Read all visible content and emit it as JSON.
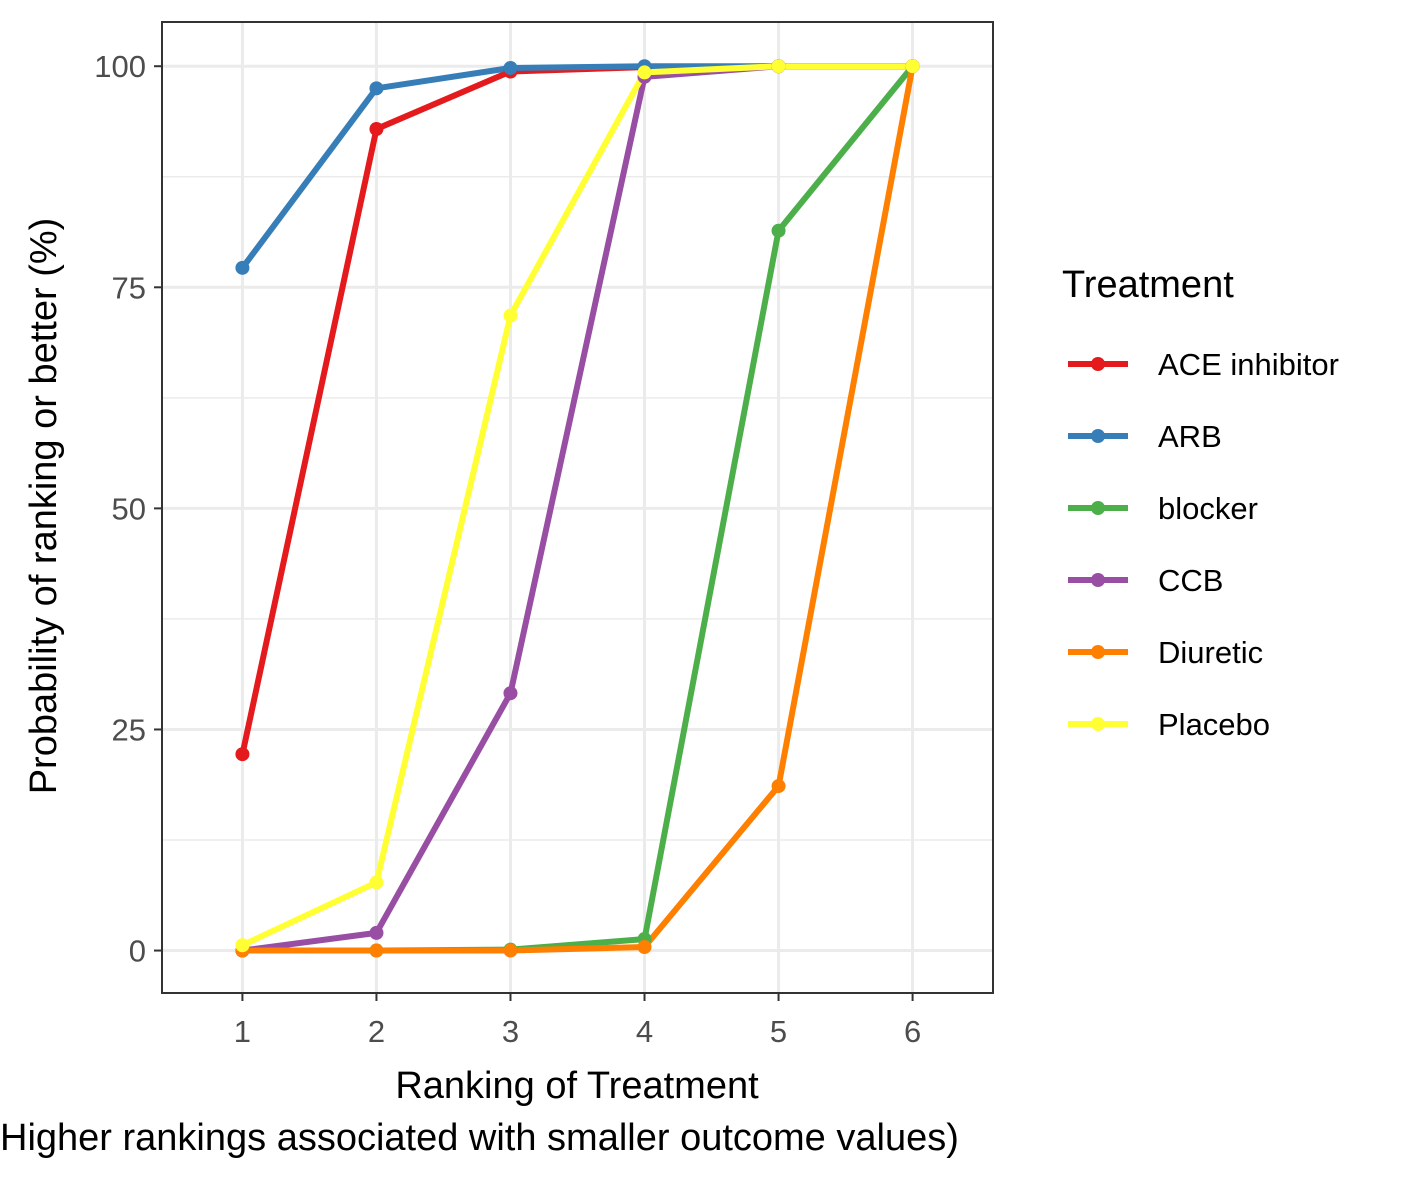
{
  "chart_data": {
    "type": "line",
    "title": "",
    "xlabel": "Ranking of Treatment",
    "xlabel_line2": "Higher rankings associated with smaller outcome values)",
    "ylabel": "Probability of ranking or better (%)",
    "x": [
      1,
      2,
      3,
      4,
      5,
      6
    ],
    "xlim": [
      0.4,
      6.6
    ],
    "ylim": [
      -4.8,
      105
    ],
    "yticks": [
      0,
      25,
      50,
      75,
      100
    ],
    "grid": true,
    "legend_title": "Treatment",
    "legend_position": "right",
    "series": [
      {
        "name": "ACE inhibitor",
        "color": "#e41a1c",
        "values": [
          22.2,
          92.9,
          99.4,
          99.9,
          100,
          100
        ]
      },
      {
        "name": "ARB",
        "color": "#377eb8",
        "values": [
          77.2,
          97.5,
          99.8,
          100,
          100,
          100
        ]
      },
      {
        "name": "blocker",
        "color": "#4daf4a",
        "values": [
          0,
          0,
          0.1,
          1.3,
          81.4,
          100
        ]
      },
      {
        "name": "CCB",
        "color": "#984ea3",
        "values": [
          0,
          2,
          29.1,
          98.8,
          100,
          100
        ]
      },
      {
        "name": "Diuretic",
        "color": "#ff7f00",
        "values": [
          0,
          0,
          0,
          0.4,
          18.6,
          100
        ]
      },
      {
        "name": "Placebo",
        "color": "#ffff33",
        "values": [
          0.6,
          7.7,
          71.8,
          99.3,
          100,
          100
        ]
      }
    ]
  }
}
